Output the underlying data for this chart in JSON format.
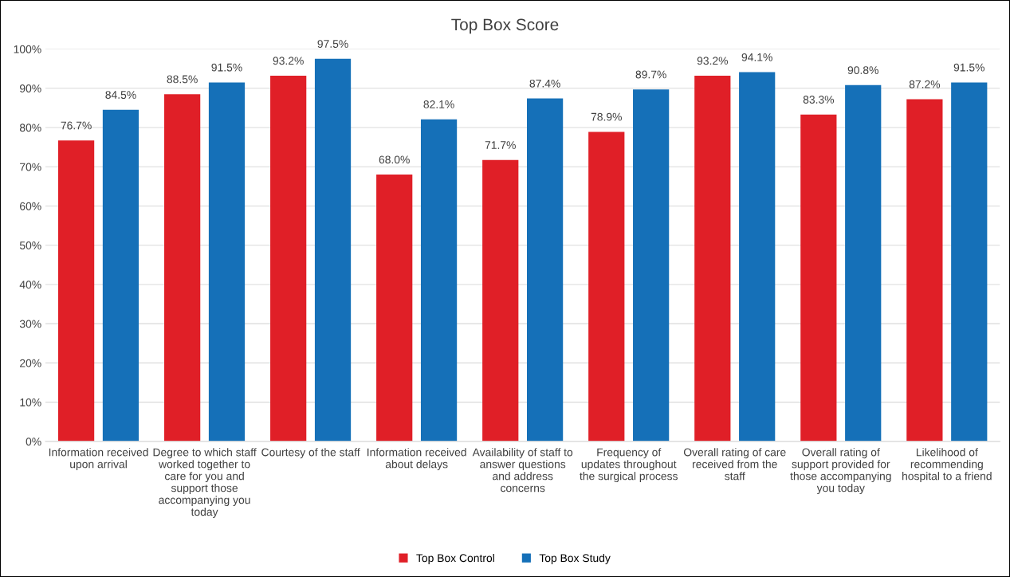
{
  "chart_data": {
    "type": "bar",
    "title": "Top Box Score",
    "categories": [
      "Information received\nupon arrival",
      "Degree to which staff\nworked together to\ncare for you and\nsupport those\naccompanying you\ntoday",
      "Courtesy of the staff",
      "Information received\nabout delays",
      "Availability of staff to\nanswer questions\nand address\nconcerns",
      "Frequency of\nupdates throughout\nthe surgical process",
      "Overall rating of care\nreceived from the\nstaff",
      "Overall rating of\nsupport provided for\nthose accompanying\nyou today",
      "Likelihood of\nrecommending\nhospital to a friend"
    ],
    "series": [
      {
        "name": "Top Box Control",
        "color": "#e01f27",
        "values": [
          76.7,
          88.5,
          93.2,
          68.0,
          71.7,
          78.9,
          93.2,
          83.3,
          87.2
        ],
        "value_labels": [
          "76.7%",
          "88.5%",
          "93.2%",
          "68.0%",
          "71.7%",
          "78.9%",
          "93.2%",
          "83.3%",
          "87.2%"
        ]
      },
      {
        "name": "Top Box Study",
        "color": "#1570b8",
        "values": [
          84.5,
          91.5,
          97.5,
          82.1,
          87.4,
          89.7,
          94.1,
          90.8,
          91.5
        ],
        "value_labels": [
          "84.5%",
          "91.5%",
          "97.5%",
          "82.1%",
          "87.4%",
          "89.7%",
          "94.1%",
          "90.8%",
          "91.5%"
        ]
      }
    ],
    "ylim": [
      0,
      100
    ],
    "yticks": [
      {
        "value": 0,
        "label": "0%"
      },
      {
        "value": 10,
        "label": "10%"
      },
      {
        "value": 20,
        "label": "20%"
      },
      {
        "value": 30,
        "label": "30%"
      },
      {
        "value": 40,
        "label": "40%"
      },
      {
        "value": 50,
        "label": "50%"
      },
      {
        "value": 60,
        "label": "60%"
      },
      {
        "value": 70,
        "label": "70%"
      },
      {
        "value": 80,
        "label": "80%"
      },
      {
        "value": 90,
        "label": "90%"
      },
      {
        "value": 100,
        "label": "100%"
      }
    ],
    "grid": "y",
    "legend": "bottom"
  }
}
